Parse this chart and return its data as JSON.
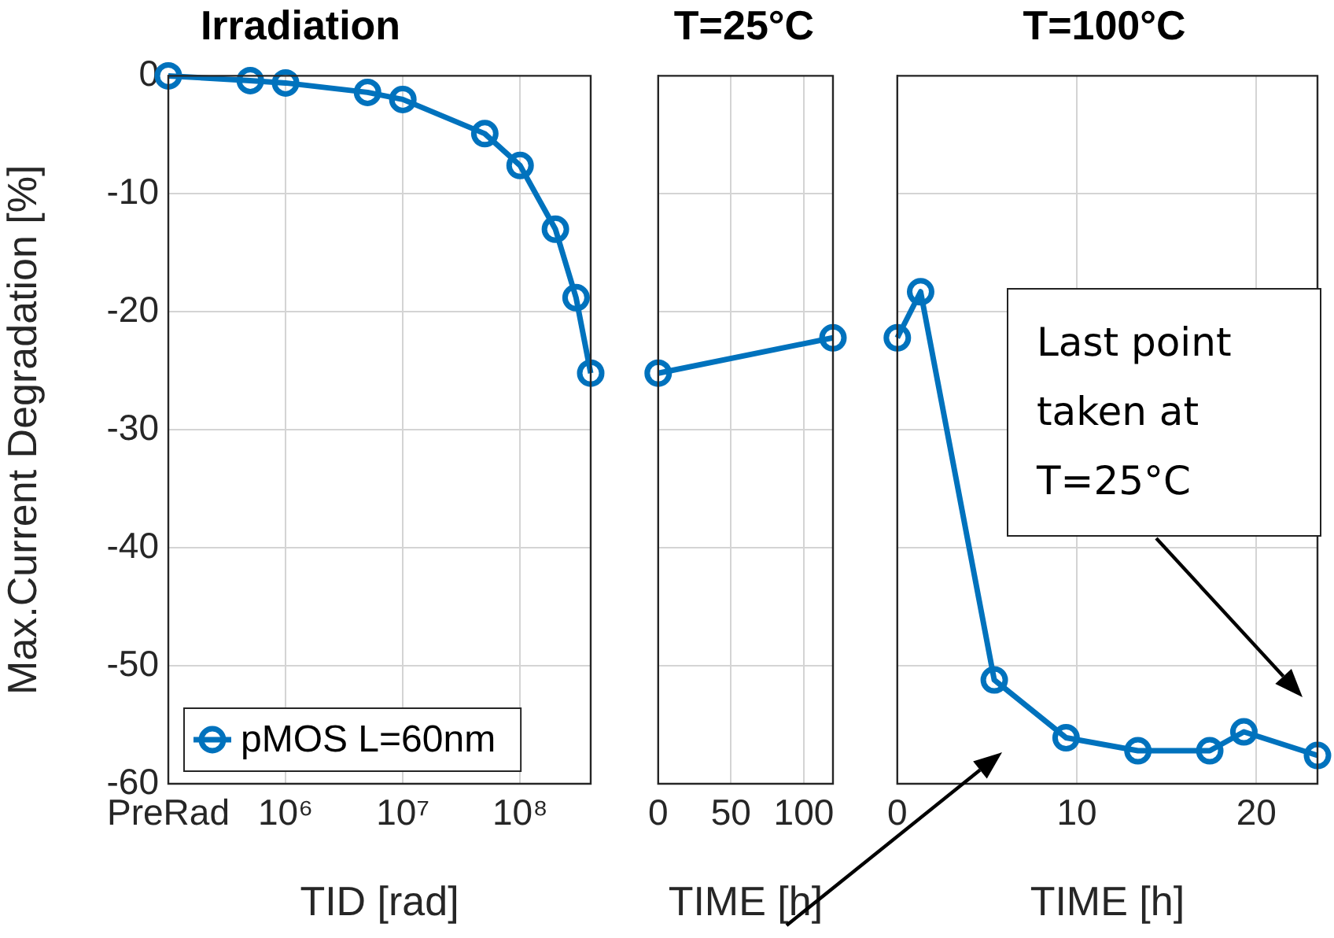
{
  "chart_data": [
    {
      "type": "line",
      "title": "Irradiation",
      "xlabel": "TID [rad]",
      "ylabel": "Max.Current Degradation [%]",
      "log": "x",
      "x": [
        100000,
        500000,
        1000000,
        5000000,
        10000000,
        50000000,
        100000000,
        200000000,
        300000000,
        400000000
      ],
      "series": [
        {
          "name": "pMOS L=60nm",
          "color": "#0072bd",
          "values": [
            0,
            -0.4,
            -0.6,
            -1.4,
            -2,
            -4.9,
            -7.6,
            -13,
            -18.8,
            -25.2
          ]
        }
      ],
      "xlim": [
        100000,
        400000000
      ],
      "xticks": [
        {
          "value": 100000,
          "label": "PreRad"
        },
        {
          "value": 1000000,
          "label": "10⁶"
        },
        {
          "value": 10000000,
          "label": "10⁷"
        },
        {
          "value": 100000000,
          "label": "10⁸"
        }
      ],
      "ylim": [
        -60,
        0
      ],
      "yticks": [
        -60,
        -50,
        -40,
        -30,
        -20,
        -10,
        0
      ],
      "grid": true,
      "legend": "bottom left",
      "marker": "circle",
      "line_style": "solid"
    },
    {
      "type": "line",
      "title": "T=25°C",
      "xlabel": "TIME [h]",
      "x": [
        0,
        120
      ],
      "series": [
        {
          "color": "#0072bd",
          "values": [
            -25.2,
            -22.2
          ]
        }
      ],
      "xlim": [
        0,
        120
      ],
      "xticks": [
        0,
        50,
        100
      ],
      "ylim": [
        -60,
        0
      ],
      "yticks": [
        -60,
        -50,
        -40,
        -30,
        -20,
        -10,
        0
      ],
      "tick_labels": "x",
      "grid": true,
      "marker": "circle",
      "line_style": "solid"
    },
    {
      "type": "line",
      "title": "T=100°C",
      "xlabel": "TIME [h]",
      "x": [
        0,
        1.3,
        5.4,
        9.4,
        13.4,
        17.4,
        19.3,
        23.4
      ],
      "series": [
        {
          "color": "#0072bd",
          "values": [
            -22.2,
            -18.3,
            -51.2,
            -56.1,
            -57.2,
            -57.2,
            -55.6,
            -57.6
          ]
        }
      ],
      "xlim": [
        0,
        23.4
      ],
      "xticks": [
        0,
        10,
        20
      ],
      "ylim": [
        -60,
        0
      ],
      "yticks": [
        -60,
        -50,
        -40,
        -30,
        -20,
        -10,
        0
      ],
      "tick_labels": "x",
      "grid": true,
      "marker": "circle",
      "line_style": "solid",
      "annotations": [
        "Last point taken at T=25°C"
      ]
    }
  ]
}
